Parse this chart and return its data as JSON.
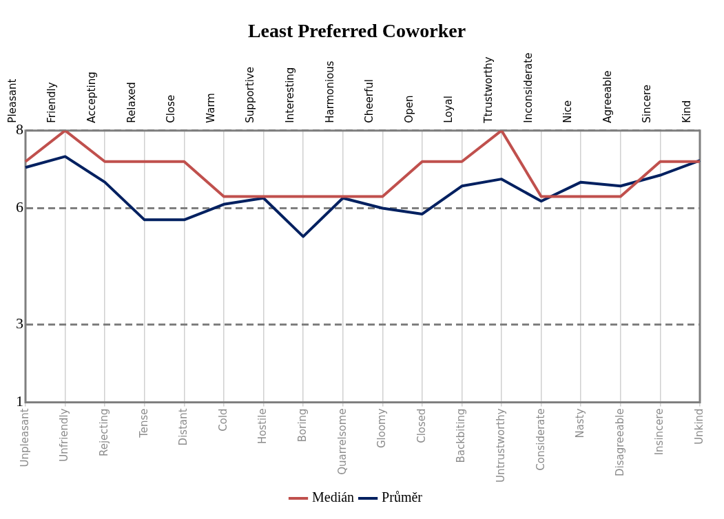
{
  "chart_data": {
    "type": "line",
    "title": "Least Preferred Coworker",
    "categories": [
      "Unpleasant",
      "Unfriendly",
      "Rejecting",
      "Tense",
      "Distant",
      "Cold",
      "Hostile",
      "Boring",
      "Quarrelsome",
      "Gloomy",
      "Closed",
      "Backbiting",
      "Untrustworthy",
      "Considerate",
      "Nasty",
      "Disagreeable",
      "Insincere",
      "Unkind"
    ],
    "annotations": [
      "Pleasant",
      "Friendly",
      "Accepting",
      "Relaxed",
      "Close",
      "Warm",
      "Supportive",
      "Interesting",
      "Harmonious",
      "Cheerful",
      "Open",
      "Loyal",
      "Ttrustworthy",
      "Inconsiderate",
      "Nice",
      "Agreeable",
      "Sincere",
      "Kind"
    ],
    "series": [
      {
        "name": "Medián",
        "color": "#c0504d",
        "values": [
          7.2,
          8,
          7.2,
          7.2,
          7.2,
          6.3,
          6.3,
          6.3,
          6.3,
          6.3,
          7.2,
          7.2,
          8,
          6.3,
          6.3,
          6.3,
          7.2,
          7.2
        ]
      },
      {
        "name": "Průměr",
        "color": "#002060",
        "values": [
          7.05,
          7.33,
          6.67,
          5.7,
          5.7,
          6.1,
          6.26,
          5.27,
          6.26,
          6.0,
          5.85,
          6.57,
          6.75,
          6.18,
          6.67,
          6.57,
          6.85,
          7.23
        ]
      }
    ],
    "ylim": [
      1,
      8
    ],
    "yticks": [
      1,
      3,
      6,
      8
    ],
    "grid": true,
    "legend": "bottom",
    "marker": "none",
    "line_style": "solid"
  }
}
